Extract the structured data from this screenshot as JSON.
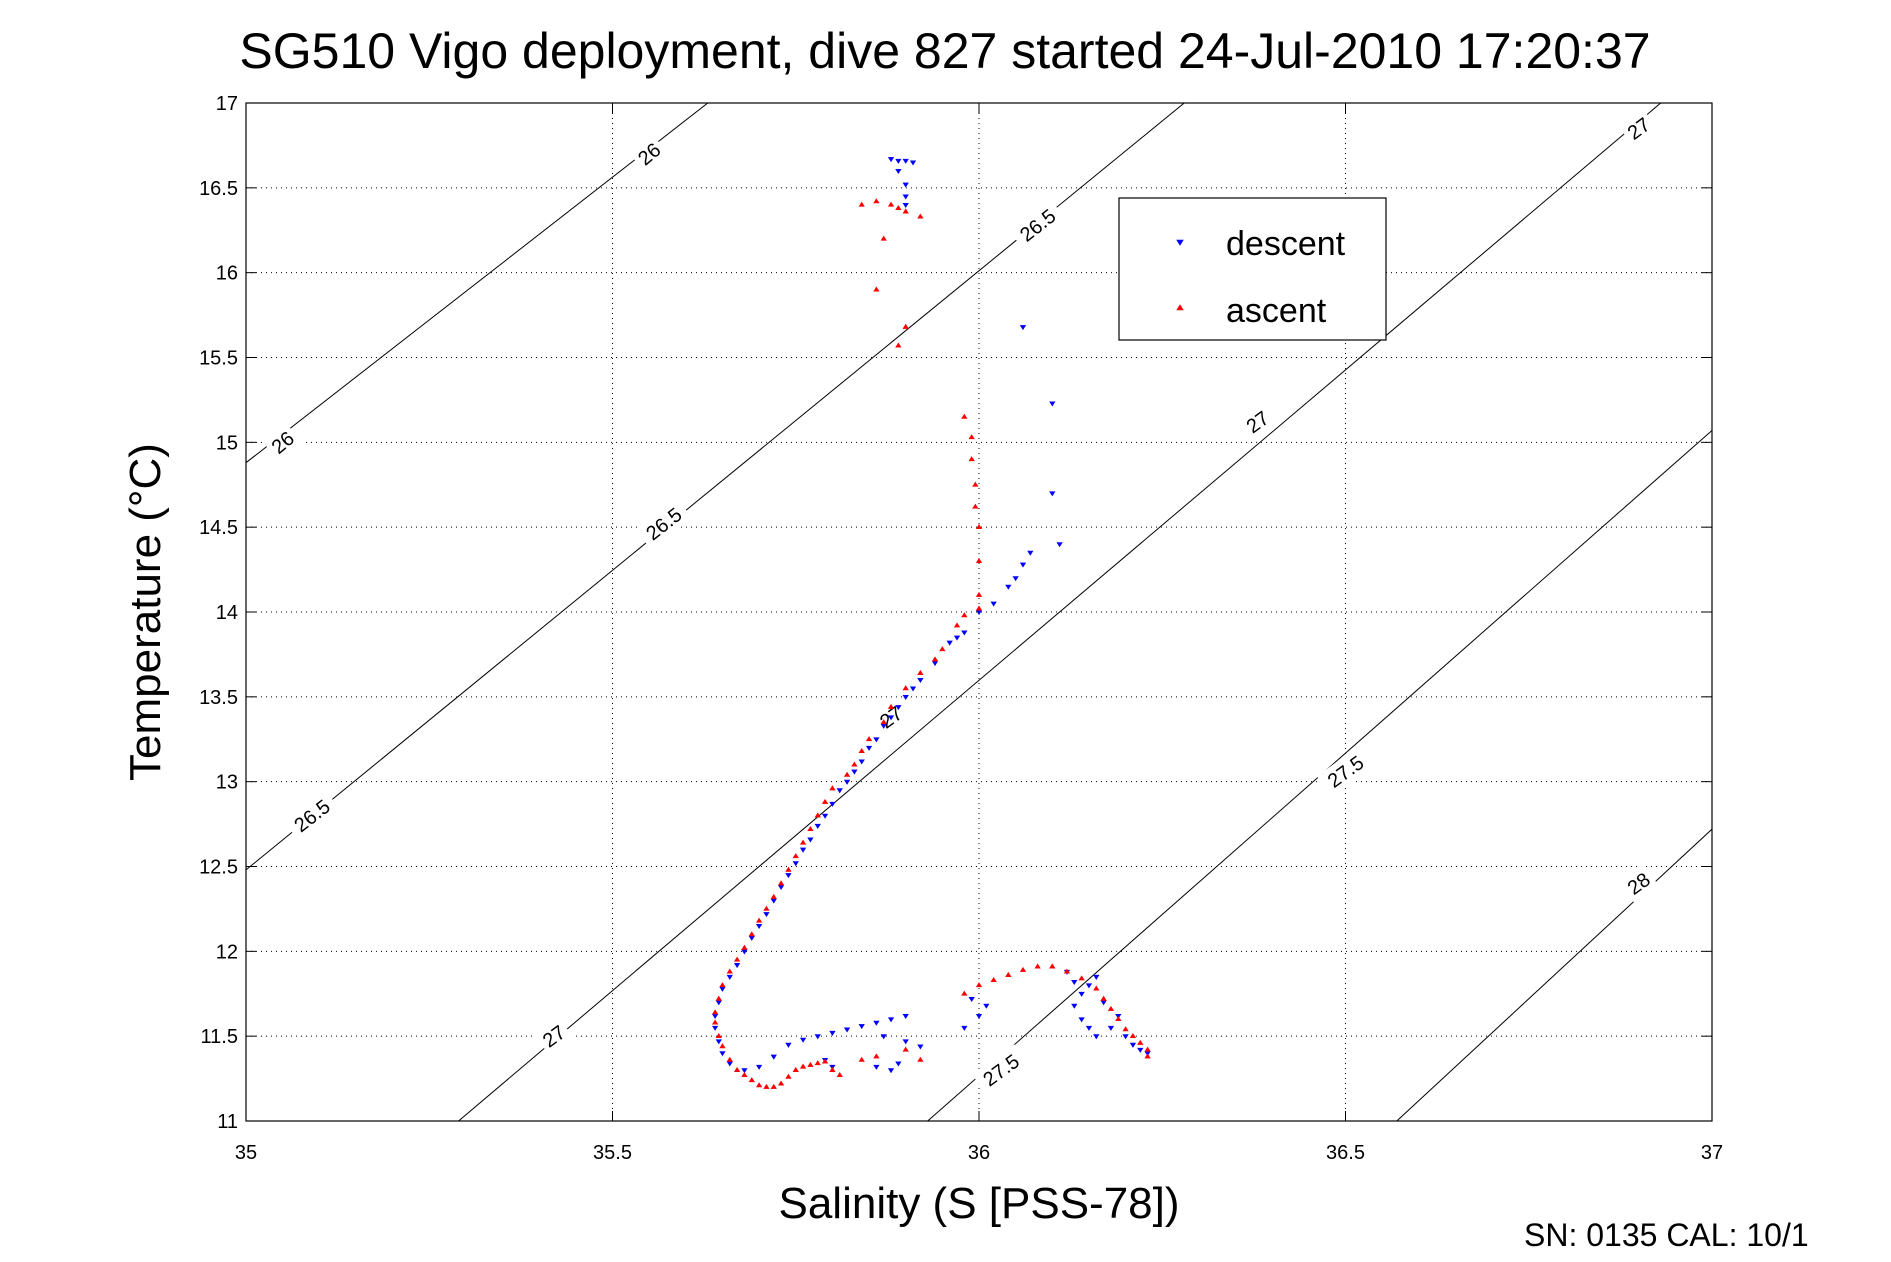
{
  "chart_data": {
    "type": "scatter",
    "title": "SG510 Vigo deployment, dive 827 started 24-Jul-2010 17:20:37",
    "xlabel": "Salinity (S [PSS-78])",
    "ylabel": "Temperature (°C)",
    "xlim": [
      35,
      37
    ],
    "ylim": [
      11,
      17
    ],
    "x_ticks": [
      "35",
      "35.5",
      "36",
      "36.5",
      "37"
    ],
    "y_ticks": [
      "11",
      "11.5",
      "12",
      "12.5",
      "13",
      "13.5",
      "14",
      "14.5",
      "15",
      "15.5",
      "16",
      "16.5",
      "17"
    ],
    "grid": true,
    "legend": {
      "position": "top-right"
    },
    "footer": "SN: 0135  CAL: 10/1",
    "density_contours": [
      {
        "level": "26",
        "points": [
          [
            35,
            14.88
          ],
          [
            35.63,
            17
          ]
        ]
      },
      {
        "level": "26.5",
        "points": [
          [
            35,
            12.48
          ],
          [
            36.28,
            17
          ]
        ]
      },
      {
        "level": "27",
        "points": [
          [
            35.29,
            11
          ],
          [
            36.93,
            17
          ]
        ]
      },
      {
        "level": "27.5",
        "points": [
          [
            35.93,
            11
          ],
          [
            37,
            15.07
          ]
        ]
      },
      {
        "level": "28",
        "points": [
          [
            36.57,
            11
          ],
          [
            37,
            12.72
          ]
        ]
      }
    ],
    "contour_labels": [
      {
        "level": "26",
        "x": 35.55,
        "y": 16.7,
        "angle": -40
      },
      {
        "level": "26",
        "x": 35.05,
        "y": 15.0,
        "angle": -40
      },
      {
        "level": "26.5",
        "x": 36.08,
        "y": 16.28,
        "angle": -38
      },
      {
        "level": "26.5",
        "x": 35.57,
        "y": 14.52,
        "angle": -38
      },
      {
        "level": "26.5",
        "x": 35.09,
        "y": 12.8,
        "angle": -38
      },
      {
        "level": "27",
        "x": 36.9,
        "y": 16.85,
        "angle": -36
      },
      {
        "level": "27",
        "x": 36.38,
        "y": 15.12,
        "angle": -36
      },
      {
        "level": "27",
        "x": 35.88,
        "y": 13.38,
        "angle": -36
      },
      {
        "level": "27",
        "x": 35.42,
        "y": 11.5,
        "angle": -36
      },
      {
        "level": "27.5",
        "x": 36.5,
        "y": 13.06,
        "angle": -36
      },
      {
        "level": "27.5",
        "x": 36.03,
        "y": 11.3,
        "angle": -36
      },
      {
        "level": "28",
        "x": 36.9,
        "y": 12.4,
        "angle": -36
      }
    ],
    "series": [
      {
        "name": "descent",
        "color": "#0000ff",
        "marker": "triangle-down",
        "points": [
          [
            35.88,
            16.67
          ],
          [
            35.89,
            16.66
          ],
          [
            35.9,
            16.66
          ],
          [
            35.91,
            16.65
          ],
          [
            35.89,
            16.6
          ],
          [
            35.9,
            16.52
          ],
          [
            35.9,
            16.45
          ],
          [
            35.9,
            16.4
          ],
          [
            36.06,
            15.68
          ],
          [
            36.1,
            15.23
          ],
          [
            36.1,
            14.7
          ],
          [
            36.11,
            14.4
          ],
          [
            36.06,
            14.28
          ],
          [
            36.07,
            14.35
          ],
          [
            36.05,
            14.2
          ],
          [
            36.04,
            14.15
          ],
          [
            36.02,
            14.05
          ],
          [
            36.0,
            14.0
          ],
          [
            35.98,
            13.88
          ],
          [
            35.97,
            13.85
          ],
          [
            35.96,
            13.82
          ],
          [
            35.94,
            13.7
          ],
          [
            35.92,
            13.6
          ],
          [
            35.91,
            13.55
          ],
          [
            35.9,
            13.5
          ],
          [
            35.89,
            13.44
          ],
          [
            35.88,
            13.38
          ],
          [
            35.87,
            13.33
          ],
          [
            35.86,
            13.25
          ],
          [
            35.85,
            13.2
          ],
          [
            35.84,
            13.12
          ],
          [
            35.83,
            13.06
          ],
          [
            35.82,
            13.0
          ],
          [
            35.81,
            12.95
          ],
          [
            35.8,
            12.87
          ],
          [
            35.79,
            12.8
          ],
          [
            35.78,
            12.74
          ],
          [
            35.77,
            12.66
          ],
          [
            35.76,
            12.6
          ],
          [
            35.75,
            12.52
          ],
          [
            35.74,
            12.45
          ],
          [
            35.73,
            12.38
          ],
          [
            35.72,
            12.3
          ],
          [
            35.71,
            12.22
          ],
          [
            35.7,
            12.15
          ],
          [
            35.69,
            12.08
          ],
          [
            35.68,
            12.0
          ],
          [
            35.67,
            11.92
          ],
          [
            35.66,
            11.85
          ],
          [
            35.65,
            11.78
          ],
          [
            35.645,
            11.7
          ],
          [
            35.64,
            11.62
          ],
          [
            35.64,
            11.55
          ],
          [
            35.645,
            11.47
          ],
          [
            35.65,
            11.4
          ],
          [
            35.66,
            11.34
          ],
          [
            35.68,
            11.3
          ],
          [
            35.7,
            11.32
          ],
          [
            35.72,
            11.38
          ],
          [
            35.74,
            11.45
          ],
          [
            35.76,
            11.48
          ],
          [
            35.78,
            11.5
          ],
          [
            35.8,
            11.52
          ],
          [
            35.82,
            11.54
          ],
          [
            35.84,
            11.56
          ],
          [
            35.86,
            11.58
          ],
          [
            35.88,
            11.6
          ],
          [
            35.9,
            11.62
          ],
          [
            35.87,
            11.5
          ],
          [
            35.9,
            11.47
          ],
          [
            35.92,
            11.44
          ],
          [
            35.86,
            11.32
          ],
          [
            35.88,
            11.3
          ],
          [
            35.89,
            11.34
          ],
          [
            35.8,
            11.32
          ],
          [
            35.79,
            11.36
          ],
          [
            35.98,
            11.55
          ],
          [
            36.0,
            11.62
          ],
          [
            36.01,
            11.68
          ],
          [
            35.99,
            11.72
          ],
          [
            36.12,
            11.88
          ],
          [
            36.13,
            11.82
          ],
          [
            36.14,
            11.75
          ],
          [
            36.13,
            11.68
          ],
          [
            36.14,
            11.6
          ],
          [
            36.15,
            11.55
          ],
          [
            36.16,
            11.5
          ],
          [
            36.18,
            11.55
          ],
          [
            36.2,
            11.5
          ],
          [
            36.21,
            11.45
          ],
          [
            36.22,
            11.42
          ],
          [
            36.23,
            11.4
          ],
          [
            36.19,
            11.62
          ],
          [
            36.17,
            11.7
          ],
          [
            36.15,
            11.8
          ],
          [
            36.16,
            11.85
          ]
        ]
      },
      {
        "name": "ascent",
        "color": "#ff0000",
        "marker": "triangle-up",
        "points": [
          [
            35.86,
            16.42
          ],
          [
            35.88,
            16.4
          ],
          [
            35.89,
            16.38
          ],
          [
            35.9,
            16.36
          ],
          [
            35.84,
            16.4
          ],
          [
            35.92,
            16.33
          ],
          [
            35.87,
            16.2
          ],
          [
            35.86,
            15.9
          ],
          [
            35.9,
            15.68
          ],
          [
            35.89,
            15.57
          ],
          [
            35.98,
            15.15
          ],
          [
            35.99,
            15.03
          ],
          [
            35.99,
            14.9
          ],
          [
            35.995,
            14.75
          ],
          [
            35.995,
            14.62
          ],
          [
            36.0,
            14.5
          ],
          [
            36.0,
            14.3
          ],
          [
            36.0,
            14.1
          ],
          [
            36.0,
            14.02
          ],
          [
            35.98,
            13.98
          ],
          [
            35.97,
            13.92
          ],
          [
            35.95,
            13.78
          ],
          [
            35.94,
            13.72
          ],
          [
            35.92,
            13.64
          ],
          [
            35.9,
            13.55
          ],
          [
            35.88,
            13.44
          ],
          [
            35.87,
            13.35
          ],
          [
            35.85,
            13.25
          ],
          [
            35.84,
            13.18
          ],
          [
            35.83,
            13.1
          ],
          [
            35.82,
            13.04
          ],
          [
            35.8,
            12.96
          ],
          [
            35.79,
            12.88
          ],
          [
            35.78,
            12.8
          ],
          [
            35.77,
            12.72
          ],
          [
            35.76,
            12.64
          ],
          [
            35.75,
            12.56
          ],
          [
            35.74,
            12.48
          ],
          [
            35.73,
            12.4
          ],
          [
            35.72,
            12.32
          ],
          [
            35.71,
            12.25
          ],
          [
            35.7,
            12.18
          ],
          [
            35.69,
            12.1
          ],
          [
            35.68,
            12.02
          ],
          [
            35.67,
            11.95
          ],
          [
            35.66,
            11.88
          ],
          [
            35.65,
            11.8
          ],
          [
            35.645,
            11.72
          ],
          [
            35.64,
            11.64
          ],
          [
            35.64,
            11.58
          ],
          [
            35.645,
            11.5
          ],
          [
            35.65,
            11.44
          ],
          [
            35.66,
            11.36
          ],
          [
            35.67,
            11.3
          ],
          [
            35.68,
            11.27
          ],
          [
            35.69,
            11.24
          ],
          [
            35.7,
            11.21
          ],
          [
            35.71,
            11.2
          ],
          [
            35.72,
            11.2
          ],
          [
            35.73,
            11.22
          ],
          [
            35.74,
            11.26
          ],
          [
            35.75,
            11.3
          ],
          [
            35.76,
            11.32
          ],
          [
            35.77,
            11.33
          ],
          [
            35.78,
            11.34
          ],
          [
            35.79,
            11.35
          ],
          [
            35.8,
            11.3
          ],
          [
            35.81,
            11.27
          ],
          [
            35.84,
            11.36
          ],
          [
            35.86,
            11.38
          ],
          [
            35.9,
            11.42
          ],
          [
            35.92,
            11.36
          ],
          [
            35.98,
            11.75
          ],
          [
            36.0,
            11.8
          ],
          [
            36.02,
            11.83
          ],
          [
            36.04,
            11.86
          ],
          [
            36.06,
            11.89
          ],
          [
            36.08,
            11.91
          ],
          [
            36.1,
            11.91
          ],
          [
            36.12,
            11.88
          ],
          [
            36.14,
            11.84
          ],
          [
            36.16,
            11.78
          ],
          [
            36.17,
            11.72
          ],
          [
            36.18,
            11.66
          ],
          [
            36.19,
            11.6
          ],
          [
            36.2,
            11.54
          ],
          [
            36.21,
            11.5
          ],
          [
            36.22,
            11.46
          ],
          [
            36.23,
            11.42
          ],
          [
            36.23,
            11.38
          ]
        ]
      }
    ]
  }
}
